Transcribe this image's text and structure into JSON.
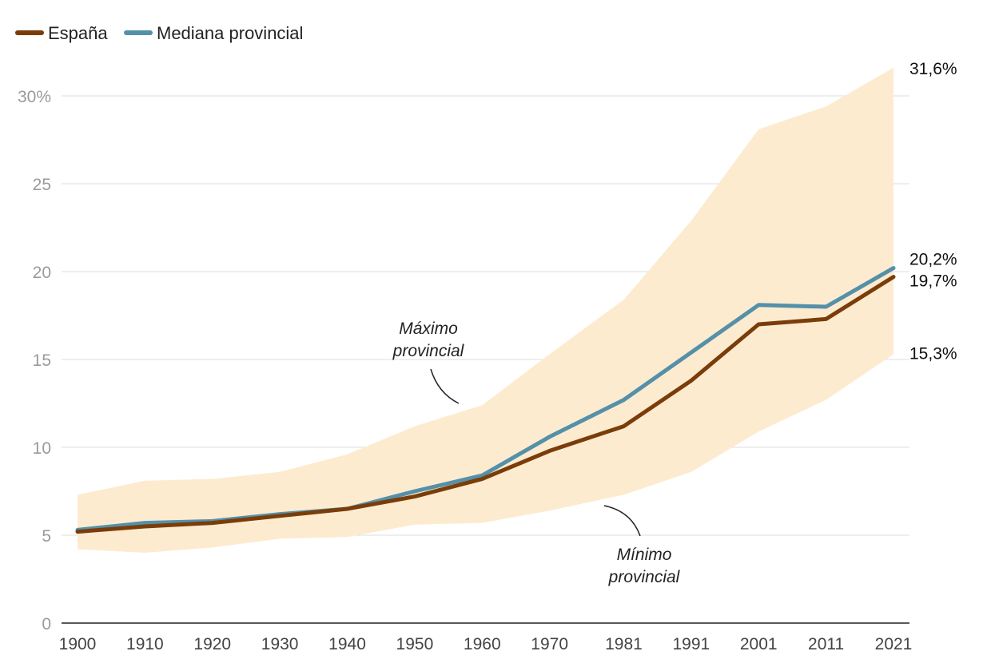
{
  "chart_data": {
    "type": "line",
    "x": [
      "1900",
      "1910",
      "1920",
      "1930",
      "1940",
      "1950",
      "1960",
      "1970",
      "1981",
      "1991",
      "2001",
      "2011",
      "2021"
    ],
    "x_positions": [
      1900,
      1910,
      1920,
      1930,
      1940,
      1950,
      1960,
      1970,
      1981,
      1991,
      2001,
      2011,
      2021
    ],
    "series": [
      {
        "name": "España",
        "color": "#7a3d0a",
        "values": [
          5.2,
          5.5,
          5.7,
          6.1,
          6.5,
          7.2,
          8.2,
          9.8,
          11.2,
          13.8,
          17.0,
          17.3,
          19.7
        ]
      },
      {
        "name": "Mediana provincial",
        "color": "#5590a9",
        "values": [
          5.3,
          5.7,
          5.8,
          6.2,
          6.5,
          7.5,
          8.4,
          10.6,
          12.7,
          15.4,
          18.1,
          18.0,
          20.2
        ]
      }
    ],
    "band": {
      "color": "#fdebd0",
      "max": [
        7.3,
        8.1,
        8.2,
        8.6,
        9.6,
        11.2,
        12.4,
        15.3,
        18.4,
        22.9,
        28.1,
        29.4,
        31.6
      ],
      "min": [
        4.2,
        4.0,
        4.3,
        4.8,
        4.9,
        5.6,
        5.7,
        6.4,
        7.3,
        8.6,
        10.9,
        12.7,
        15.3
      ]
    },
    "ylim": [
      0,
      32
    ],
    "yticks": [
      0,
      5,
      10,
      15,
      20,
      25,
      30
    ],
    "ytick_labels": [
      "0",
      "5",
      "10",
      "15",
      "20",
      "25",
      "30%"
    ],
    "grid": true,
    "legend": "top-left",
    "end_labels": [
      {
        "text": "31,6%",
        "value": 31.6
      },
      {
        "text": "20,2%",
        "value": 20.2
      },
      {
        "text": "19,7%",
        "value": 19.7
      },
      {
        "text": "15,3%",
        "value": 15.3
      }
    ],
    "annotations": {
      "max": {
        "line1": "Máximo",
        "line2": "provincial"
      },
      "min": {
        "line1": "Mínimo",
        "line2": "provincial"
      }
    }
  }
}
